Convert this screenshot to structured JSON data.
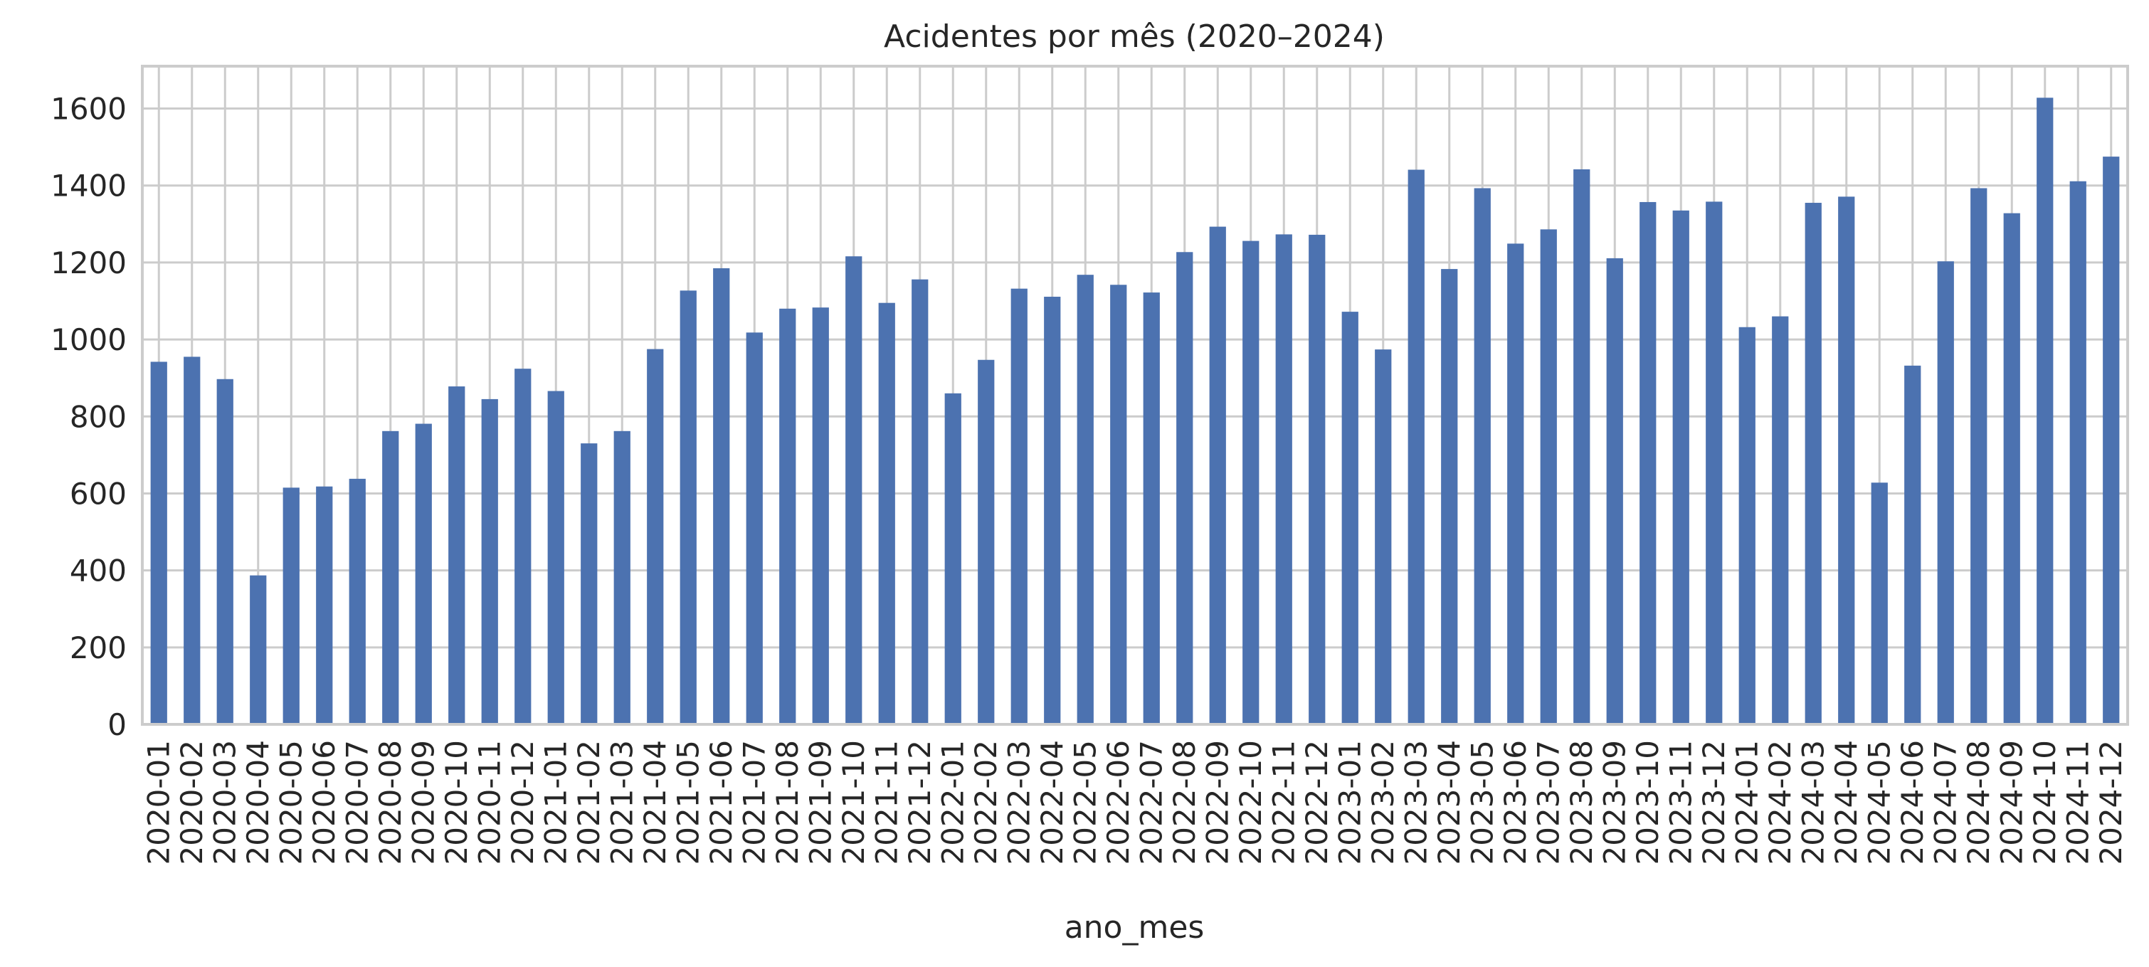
{
  "chart_data": {
    "type": "bar",
    "title": "Acidentes por mês (2020–2024)",
    "xlabel": "ano_mes",
    "ylabel": "",
    "ylim": [
      0,
      1710
    ],
    "yticks": [
      0,
      200,
      400,
      600,
      800,
      1000,
      1200,
      1400,
      1600
    ],
    "grid": true,
    "bar_color": "#4c72b0",
    "categories": [
      "2020-01",
      "2020-02",
      "2020-03",
      "2020-04",
      "2020-05",
      "2020-06",
      "2020-07",
      "2020-08",
      "2020-09",
      "2020-10",
      "2020-11",
      "2020-12",
      "2021-01",
      "2021-02",
      "2021-03",
      "2021-04",
      "2021-05",
      "2021-06",
      "2021-07",
      "2021-08",
      "2021-09",
      "2021-10",
      "2021-11",
      "2021-12",
      "2022-01",
      "2022-02",
      "2022-03",
      "2022-04",
      "2022-05",
      "2022-06",
      "2022-07",
      "2022-08",
      "2022-09",
      "2022-10",
      "2022-11",
      "2022-12",
      "2023-01",
      "2023-02",
      "2023-03",
      "2023-04",
      "2023-05",
      "2023-06",
      "2023-07",
      "2023-08",
      "2023-09",
      "2023-10",
      "2023-11",
      "2023-12",
      "2024-01",
      "2024-02",
      "2024-03",
      "2024-04",
      "2024-05",
      "2024-06",
      "2024-07",
      "2024-08",
      "2024-09",
      "2024-10",
      "2024-11",
      "2024-12"
    ],
    "values": [
      942,
      955,
      897,
      387,
      615,
      618,
      638,
      762,
      781,
      878,
      845,
      924,
      866,
      730,
      762,
      975,
      1127,
      1185,
      1018,
      1080,
      1083,
      1216,
      1095,
      1156,
      860,
      947,
      1132,
      1111,
      1168,
      1142,
      1122,
      1227,
      1293,
      1256,
      1273,
      1272,
      1072,
      974,
      1441,
      1183,
      1393,
      1249,
      1286,
      1442,
      1211,
      1357,
      1335,
      1358,
      1032,
      1060,
      1355,
      1371,
      628,
      932,
      1203,
      1393,
      1328,
      1628,
      1411,
      1475
    ]
  }
}
